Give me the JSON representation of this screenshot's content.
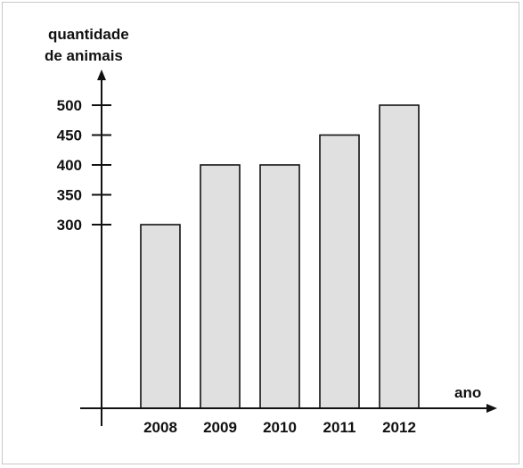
{
  "chart_data": {
    "type": "bar",
    "ylabel_lines": [
      "quantidade",
      "de animais"
    ],
    "xlabel": "ano",
    "categories": [
      "2008",
      "2009",
      "2010",
      "2011",
      "2012"
    ],
    "values": [
      300,
      400,
      400,
      450,
      500
    ],
    "yticks": [
      300,
      350,
      400,
      450,
      500
    ],
    "bar_color": "#e0e0e0",
    "grid": false,
    "legend": "none"
  }
}
